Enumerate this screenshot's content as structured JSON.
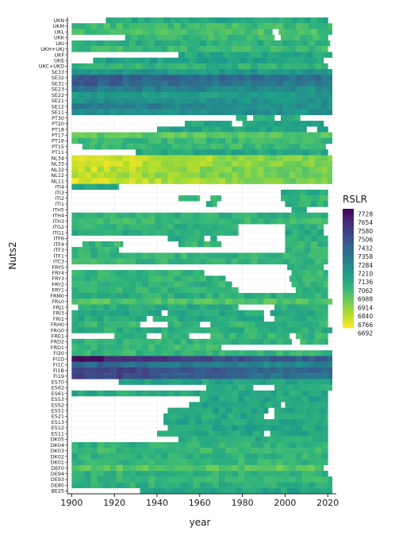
{
  "chart_data": {
    "type": "heatmap",
    "xlabel": "year",
    "ylabel": "Nuts2",
    "x_ticks": [
      1900,
      1920,
      1940,
      1960,
      1980,
      2000,
      2020
    ],
    "x_range": [
      1898,
      2024
    ],
    "rows": [
      "UKN",
      "UKM",
      "UKL",
      "UKK",
      "UKI",
      "UKH+UKJ",
      "UKF",
      "UKE",
      "UKC+UKD",
      "SE33",
      "SE32",
      "SE31",
      "SE23",
      "SE22",
      "SE21",
      "SE12",
      "SE11",
      "PT30",
      "PT20",
      "PT18",
      "PT17",
      "PT16",
      "PT15",
      "PT11",
      "NL34",
      "NL33",
      "NL32",
      "NL12",
      "NL11",
      "ITI4",
      "ITI3",
      "ITI2",
      "ITI1",
      "ITH5",
      "ITH4",
      "ITH3",
      "ITG2",
      "ITG1",
      "ITF6",
      "ITF4",
      "ITF3",
      "ITF1",
      "ITC3",
      "FRY5",
      "FRY4",
      "FRY3",
      "FRY2",
      "FRY1",
      "FRM0",
      "FRL0",
      "FRJ1",
      "FRI3",
      "FRI1",
      "FRH0",
      "FRG0",
      "FRE1",
      "FRD2",
      "FRD1",
      "FI20",
      "FI1D",
      "FI1C",
      "FI1B",
      "FI19",
      "ES70",
      "ES62",
      "ES61",
      "ES53",
      "ES52",
      "ES51",
      "ES21",
      "ES13",
      "ES12",
      "ES11",
      "DK05",
      "DK04",
      "DK03",
      "DK02",
      "DK01",
      "DEF0",
      "DE94",
      "DE93",
      "DE80",
      "BE25"
    ],
    "row_data": [
      {
        "spans": [
          [
            1916,
            2020
          ]
        ],
        "base": 7100
      },
      {
        "spans": [
          [
            1900,
            2022
          ]
        ],
        "base": 7020
      },
      {
        "spans": [
          [
            1900,
            1994
          ],
          [
            1997,
            2022
          ]
        ],
        "base": 7000
      },
      {
        "spans": [
          [
            1925,
            1995
          ],
          [
            1998,
            2020
          ]
        ],
        "base": 7030
      },
      {
        "spans": [
          [
            1900,
            2021
          ]
        ],
        "base": 7080
      },
      {
        "spans": [
          [
            1900,
            2020
          ]
        ],
        "base": 7030
      },
      {
        "spans": [
          [
            1950,
            2022
          ]
        ],
        "base": 7120
      },
      {
        "spans": [
          [
            1910,
            2018
          ]
        ],
        "base": 7140
      },
      {
        "spans": [
          [
            1900,
            2020
          ]
        ],
        "base": 7060
      },
      {
        "spans": [
          [
            1900,
            2022
          ]
        ],
        "base": 7180
      },
      {
        "spans": [
          [
            1900,
            2022
          ]
        ],
        "base": 7340,
        "highstart": 7460
      },
      {
        "spans": [
          [
            1900,
            2022
          ]
        ],
        "base": 7300,
        "highstart": 7420
      },
      {
        "spans": [
          [
            1900,
            2022
          ]
        ],
        "base": 7220,
        "highstart": 7320
      },
      {
        "spans": [
          [
            1900,
            2022
          ]
        ],
        "base": 7160
      },
      {
        "spans": [
          [
            1900,
            2022
          ]
        ],
        "base": 7200
      },
      {
        "spans": [
          [
            1900,
            2022
          ]
        ],
        "base": 7220,
        "highstart": 7320
      },
      {
        "spans": [
          [
            1900,
            2022
          ]
        ],
        "base": 7200
      },
      {
        "spans": [
          [
            1977,
            1982
          ],
          [
            1985,
            1995
          ],
          [
            1998,
            2007
          ]
        ],
        "base": 7090
      },
      {
        "spans": [
          [
            1953,
            1975
          ],
          [
            1980,
            2018
          ]
        ],
        "base": 7110
      },
      {
        "spans": [
          [
            1940,
            2010
          ],
          [
            2015,
            2020
          ]
        ],
        "base": 7120
      },
      {
        "spans": [
          [
            1900,
            2022
          ]
        ],
        "base": 6960
      },
      {
        "spans": [
          [
            1900,
            2022
          ]
        ],
        "base": 7040
      },
      {
        "spans": [
          [
            1905,
            2019
          ]
        ],
        "base": 7030
      },
      {
        "spans": [
          [
            1930,
            2020
          ]
        ],
        "base": 7110
      },
      {
        "spans": [
          [
            1900,
            2022
          ]
        ],
        "base": 6890,
        "highstart": 6720
      },
      {
        "spans": [
          [
            1900,
            2022
          ]
        ],
        "base": 6900,
        "highstart": 6740
      },
      {
        "spans": [
          [
            1900,
            2022
          ]
        ],
        "base": 6920,
        "highstart": 6770
      },
      {
        "spans": [
          [
            1900,
            2022
          ]
        ],
        "base": 6930,
        "highstart": 6800
      },
      {
        "spans": [
          [
            1900,
            2022
          ]
        ],
        "base": 6910,
        "highstart": 6730
      },
      {
        "spans": [
          [
            1900,
            1922
          ]
        ],
        "base": 7110
      },
      {
        "spans": [
          [
            1998,
            2020
          ]
        ],
        "base": 7090
      },
      {
        "spans": [
          [
            1950,
            1960
          ],
          [
            1965,
            1970
          ],
          [
            1998,
            2020
          ]
        ],
        "base": 7040
      },
      {
        "spans": [
          [
            1963,
            1968
          ],
          [
            2000,
            2020
          ]
        ],
        "base": 7070
      },
      {
        "spans": [
          [
            2003,
            2010
          ]
        ],
        "base": 7110
      },
      {
        "spans": [
          [
            1900,
            2020
          ]
        ],
        "base": 7060
      },
      {
        "spans": [
          [
            1900,
            2020
          ]
        ],
        "base": 7030
      },
      {
        "spans": [
          [
            1900,
            1978
          ],
          [
            2000,
            2018
          ]
        ],
        "base": 7060
      },
      {
        "spans": [
          [
            1900,
            1978
          ],
          [
            2000,
            2018
          ]
        ],
        "base": 7080
      },
      {
        "spans": [
          [
            1945,
            1962
          ],
          [
            1965,
            1968
          ],
          [
            2000,
            2020
          ]
        ],
        "base": 7090
      },
      {
        "spans": [
          [
            1905,
            1924
          ],
          [
            1950,
            1970
          ],
          [
            2000,
            2020
          ]
        ],
        "base": 7050
      },
      {
        "spans": [
          [
            1900,
            1922
          ],
          [
            2000,
            2020
          ]
        ],
        "base": 7060
      },
      {
        "spans": [
          [
            1900,
            2020
          ]
        ],
        "base": 7050
      },
      {
        "spans": [
          [
            1900,
            2020
          ]
        ],
        "base": 7040
      },
      {
        "spans": [
          [
            2001,
            2018
          ]
        ],
        "base": 7090
      },
      {
        "spans": [
          [
            1900,
            1962
          ],
          [
            2003,
            2020
          ]
        ],
        "base": 7050
      },
      {
        "spans": [
          [
            1900,
            1972
          ],
          [
            2002,
            2020
          ]
        ],
        "base": 7050
      },
      {
        "spans": [
          [
            1900,
            1975
          ],
          [
            2003,
            2020
          ]
        ],
        "base": 7050
      },
      {
        "spans": [
          [
            1900,
            1978
          ],
          [
            2005,
            2020
          ]
        ],
        "base": 7060
      },
      {
        "spans": [
          [
            1900,
            2020
          ]
        ],
        "base": 7070
      },
      {
        "spans": [
          [
            1900,
            2022
          ]
        ],
        "base": 6980
      },
      {
        "spans": [
          [
            1903,
            1978
          ],
          [
            1995,
            2020
          ]
        ],
        "base": 7090
      },
      {
        "spans": [
          [
            1900,
            1942
          ],
          [
            1945,
            1990
          ],
          [
            1993,
            2020
          ]
        ],
        "base": 7100
      },
      {
        "spans": [
          [
            1900,
            1935
          ],
          [
            1938,
            1990
          ],
          [
            1995,
            2020
          ]
        ],
        "base": 7090
      },
      {
        "spans": [
          [
            1900,
            1932
          ],
          [
            1945,
            1960
          ],
          [
            1965,
            2020
          ]
        ],
        "base": 7050
      },
      {
        "spans": [
          [
            1900,
            2022
          ]
        ],
        "base": 7070
      },
      {
        "spans": [
          [
            1920,
            1935
          ],
          [
            1942,
            1955
          ],
          [
            1965,
            2002
          ],
          [
            2005,
            2020
          ]
        ],
        "base": 7050
      },
      {
        "spans": [
          [
            1900,
            2003
          ],
          [
            2007,
            2020
          ]
        ],
        "base": 7060
      },
      {
        "spans": [
          [
            1900,
            1970
          ]
        ],
        "base": 7040
      },
      {
        "spans": [
          [
            1900,
            2022
          ]
        ],
        "base": 7050
      },
      {
        "spans": [
          [
            1900,
            2022
          ]
        ],
        "base": 7440,
        "highstart": 7700
      },
      {
        "spans": [
          [
            1900,
            2022
          ]
        ],
        "base": 7260,
        "highstart": 7400
      },
      {
        "spans": [
          [
            1900,
            2022
          ]
        ],
        "base": 7400,
        "highstart": 7560
      },
      {
        "spans": [
          [
            1900,
            2022
          ]
        ],
        "base": 7330,
        "highstart": 7560
      },
      {
        "spans": [
          [
            1922,
            2022
          ]
        ],
        "base": 7120
      },
      {
        "spans": [
          [
            1963,
            1985
          ],
          [
            1995,
            2022
          ]
        ],
        "base": 7070
      },
      {
        "spans": [
          [
            1900,
            2020
          ]
        ],
        "base": 7100
      },
      {
        "spans": [
          [
            1960,
            2020
          ]
        ],
        "base": 7110
      },
      {
        "spans": [
          [
            1955,
            1998
          ],
          [
            2000,
            2020
          ]
        ],
        "base": 7110
      },
      {
        "spans": [
          [
            1945,
            1992
          ],
          [
            1995,
            2020
          ]
        ],
        "base": 7120
      },
      {
        "spans": [
          [
            1943,
            1990
          ],
          [
            1995,
            2020
          ]
        ],
        "base": 7100
      },
      {
        "spans": [
          [
            1943,
            2020
          ]
        ],
        "base": 7110
      },
      {
        "spans": [
          [
            1945,
            2020
          ]
        ],
        "base": 7120
      },
      {
        "spans": [
          [
            1940,
            1990
          ],
          [
            1993,
            2020
          ]
        ],
        "base": 7110
      },
      {
        "spans": [
          [
            1950,
            2020
          ]
        ],
        "base": 7080
      },
      {
        "spans": [
          [
            1900,
            2020
          ]
        ],
        "base": 7060
      },
      {
        "spans": [
          [
            1900,
            2020
          ]
        ],
        "base": 7040
      },
      {
        "spans": [
          [
            1900,
            2020
          ]
        ],
        "base": 7060
      },
      {
        "spans": [
          [
            1900,
            2020
          ]
        ],
        "base": 7050
      },
      {
        "spans": [
          [
            1900,
            2018
          ]
        ],
        "base": 6960
      },
      {
        "spans": [
          [
            1900,
            2020
          ]
        ],
        "base": 7060
      },
      {
        "spans": [
          [
            1900,
            2022
          ]
        ],
        "base": 7050
      },
      {
        "spans": [
          [
            1900,
            2022
          ]
        ],
        "base": 7070
      },
      {
        "spans": [
          [
            1932,
            2022
          ]
        ],
        "base": 7120
      }
    ],
    "legend": {
      "title": "RSLR",
      "position": "right",
      "breaks": [
        7728,
        7654,
        7580,
        7506,
        7432,
        7358,
        7284,
        7210,
        7136,
        7062,
        6988,
        6914,
        6840,
        6766,
        6692
      ],
      "colors": [
        "#440154",
        "#472a7a",
        "#3e4989",
        "#30688e",
        "#26828e",
        "#1f9e89",
        "#35b779",
        "#6ece58",
        "#b5de2b",
        "#fde725"
      ]
    },
    "value_range": [
      6692,
      7728
    ],
    "grid": true
  }
}
